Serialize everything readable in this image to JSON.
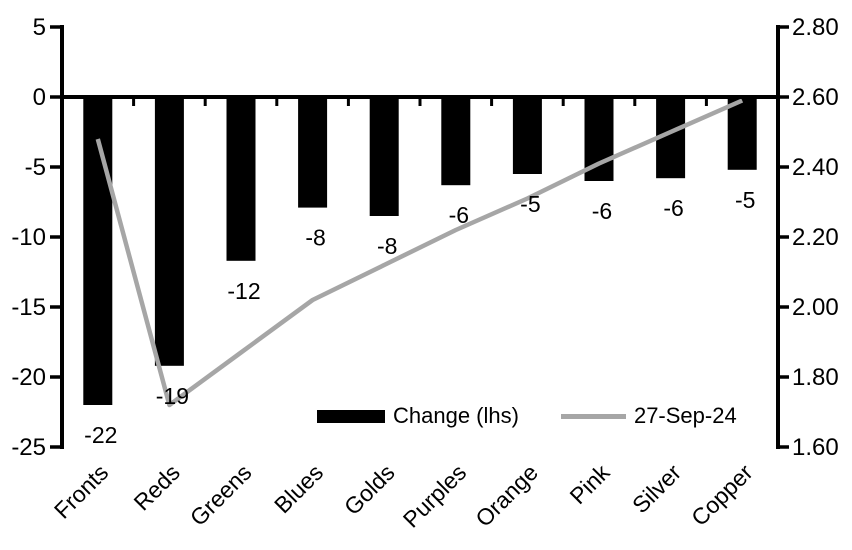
{
  "chart_data": {
    "type": "combo",
    "title": "",
    "categories": [
      "Fronts",
      "Reds",
      "Greens",
      "Blues",
      "Golds",
      "Purples",
      "Orange",
      "Pink",
      "Silver",
      "Copper"
    ],
    "series": [
      {
        "name": "Change (lhs)",
        "type": "bar",
        "axis": "left",
        "color": "#000000",
        "values": [
          -22.0,
          -19.2,
          -11.7,
          -7.9,
          -8.5,
          -6.3,
          -5.5,
          -6.0,
          -5.8,
          -5.2
        ],
        "data_labels": [
          "-22",
          "-19",
          "-12",
          "-8",
          "-8",
          "-6",
          "-5",
          "-6",
          "-6",
          "-5"
        ]
      },
      {
        "name": "27-Sep-24",
        "type": "line",
        "axis": "right",
        "color": "#a6a6a6",
        "values": [
          2.48,
          1.72,
          1.87,
          2.02,
          2.12,
          2.22,
          2.31,
          2.41,
          2.5,
          2.59
        ]
      }
    ],
    "left_axis": {
      "min": -25,
      "max": 5,
      "step": 5,
      "tick_labels": [
        "5",
        "0",
        "-5",
        "-10",
        "-15",
        "-20",
        "-25"
      ]
    },
    "right_axis": {
      "min": 1.6,
      "max": 2.8,
      "step": 0.2,
      "tick_labels": [
        "2.80",
        "2.60",
        "2.40",
        "2.20",
        "2.00",
        "1.80",
        "1.60"
      ]
    },
    "legend": {
      "position": "bottom-inside"
    },
    "grid": false,
    "axis_color": "#000000",
    "background": "#ffffff"
  }
}
